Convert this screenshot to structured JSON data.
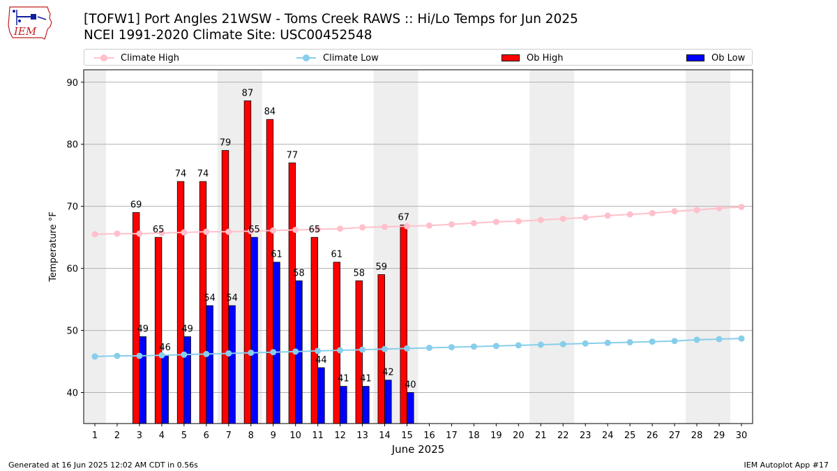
{
  "header": {
    "title_line1": "[TOFW1] Port Angles 21WSW - Toms Creek RAWS :: Hi/Lo Temps for Jun 2025",
    "title_line2": "NCEI 1991-2020 Climate Site: USC00452548",
    "logo_text": "IEM"
  },
  "legend": {
    "climate_high": "Climate High",
    "climate_low": "Climate Low",
    "ob_high": "Ob High",
    "ob_low": "Ob Low"
  },
  "footer": {
    "left": "Generated at 16 Jun 2025 12:02 AM CDT in 0.56s",
    "right": "IEM Autoplot App #17"
  },
  "colors": {
    "climate_high": "#ffc0cb",
    "climate_low": "#87ceeb",
    "ob_high": "#ff0000",
    "ob_low": "#0000ff",
    "weekend_shade": "#eeeeee",
    "grid": "#b0b0b0"
  },
  "chart_data": {
    "type": "bar",
    "xlabel": "June 2025",
    "ylabel": "Temperature °F",
    "xlim": [
      0.5,
      30.5
    ],
    "ylim": [
      35,
      92
    ],
    "yticks": [
      40,
      50,
      60,
      70,
      80,
      90
    ],
    "grid": "horizontal",
    "legend_position": "top",
    "weekend_days": [
      1,
      7,
      8,
      14,
      15,
      21,
      22,
      28,
      29
    ],
    "days": [
      1,
      2,
      3,
      4,
      5,
      6,
      7,
      8,
      9,
      10,
      11,
      12,
      13,
      14,
      15,
      16,
      17,
      18,
      19,
      20,
      21,
      22,
      23,
      24,
      25,
      26,
      27,
      28,
      29,
      30
    ],
    "series": [
      {
        "name": "Ob High",
        "kind": "bar",
        "values": [
          null,
          null,
          69,
          65,
          74,
          74,
          79,
          87,
          84,
          77,
          65,
          61,
          58,
          59,
          67,
          null,
          null,
          null,
          null,
          null,
          null,
          null,
          null,
          null,
          null,
          null,
          null,
          null,
          null,
          null
        ]
      },
      {
        "name": "Ob Low",
        "kind": "bar",
        "values": [
          null,
          null,
          49,
          46,
          49,
          54,
          54,
          65,
          61,
          58,
          44,
          41,
          41,
          42,
          40,
          null,
          null,
          null,
          null,
          null,
          null,
          null,
          null,
          null,
          null,
          null,
          null,
          null,
          null,
          null
        ]
      },
      {
        "name": "Climate High",
        "kind": "line",
        "values": [
          65.5,
          65.6,
          65.6,
          65.7,
          65.8,
          65.9,
          65.9,
          66.0,
          66.1,
          66.2,
          66.3,
          66.4,
          66.6,
          66.7,
          66.8,
          66.9,
          67.1,
          67.3,
          67.5,
          67.6,
          67.8,
          68.0,
          68.2,
          68.5,
          68.7,
          68.9,
          69.2,
          69.4,
          69.7,
          69.9
        ]
      },
      {
        "name": "Climate Low",
        "kind": "line",
        "values": [
          45.8,
          45.9,
          45.9,
          46.0,
          46.1,
          46.2,
          46.3,
          46.4,
          46.5,
          46.6,
          46.7,
          46.8,
          46.9,
          47.0,
          47.1,
          47.2,
          47.3,
          47.4,
          47.5,
          47.6,
          47.7,
          47.8,
          47.9,
          48.0,
          48.1,
          48.2,
          48.3,
          48.5,
          48.6,
          48.7
        ]
      }
    ]
  }
}
